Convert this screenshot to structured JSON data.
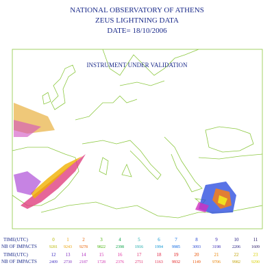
{
  "header": {
    "lines": [
      "NATIONAL OBSERVATORY OF ATHENS",
      "ZEUS LIGHTNING DATA",
      "DATE= 18/10/2006"
    ]
  },
  "map": {
    "annotation": "INSTRUMENT UNDER VALIDATION"
  },
  "table": {
    "time_label": "TIME(UTC)",
    "impacts_label": "NB OF IMPACTS",
    "rows": [
      {
        "hours": [
          {
            "text": "0",
            "color": "#b8b800"
          },
          {
            "text": "1",
            "color": "#e8a000"
          },
          {
            "text": "2",
            "color": "#e86000"
          },
          {
            "text": "3",
            "color": "#40b000"
          },
          {
            "text": "4",
            "color": "#00a040"
          },
          {
            "text": "5",
            "color": "#00a0a0"
          },
          {
            "text": "6",
            "color": "#0090d0"
          },
          {
            "text": "7",
            "color": "#0060e0"
          },
          {
            "text": "8",
            "color": "#2040d0"
          },
          {
            "text": "9",
            "color": "#3020b0"
          },
          {
            "text": "10",
            "color": "#201880"
          },
          {
            "text": "11",
            "color": "#201060"
          }
        ],
        "impacts": [
          "9281",
          "9243",
          "9278",
          "9822",
          "2398",
          "1916",
          "1994",
          "9985",
          "3093",
          "3198",
          "2206",
          "1609"
        ]
      },
      {
        "hours": [
          {
            "text": "12",
            "color": "#4030c0"
          },
          {
            "text": "13",
            "color": "#8030c0"
          },
          {
            "text": "14",
            "color": "#b030c0"
          },
          {
            "text": "15",
            "color": "#d030b0"
          },
          {
            "text": "16",
            "color": "#e030a0"
          },
          {
            "text": "17",
            "color": "#e03070"
          },
          {
            "text": "18",
            "color": "#e02040"
          },
          {
            "text": "19",
            "color": "#e01010"
          },
          {
            "text": "20",
            "color": "#e85000"
          },
          {
            "text": "21",
            "color": "#e88000"
          },
          {
            "text": "22",
            "color": "#c0a000"
          },
          {
            "text": "23",
            "color": "#d8d000"
          }
        ],
        "impacts": [
          "2409",
          "2730",
          "2187",
          "1728",
          "2376",
          "2751",
          "1163",
          "9932",
          "1149",
          "9706",
          "9982",
          "9290"
        ]
      }
    ]
  }
}
